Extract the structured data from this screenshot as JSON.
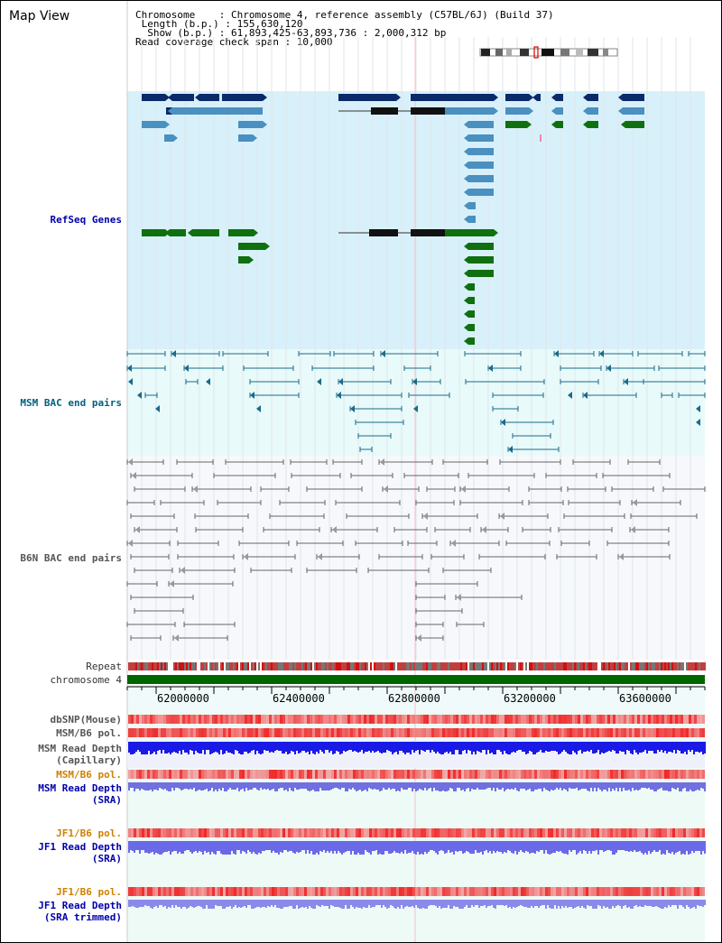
{
  "page": {
    "title": "Map View"
  },
  "info": {
    "chromosome_label": "Chromosome    : ",
    "chromosome_value": "Chromosome 4, reference assembly (C57BL/6J) (Build 37)",
    "length_label": " Length (b.p.) : ",
    "length_value": "155,630,120",
    "show_label": "  Show (b.p.) : ",
    "show_value": "61,893,425-63,893,736 : 2,000,312 bp",
    "coverage_label": "Read coverage check span : ",
    "coverage_value": "10,000"
  },
  "tracks": {
    "refseq": "RefSeq Genes",
    "msm_bac": "MSM BAC end pairs",
    "b6n_bac": "B6N BAC end pairs",
    "repeat": "Repeat",
    "chromosome": "chromosome 4",
    "dbsnp": "dbSNP(Mouse)",
    "msm_b6_pol_1": "MSM/B6 pol.",
    "msm_read_depth_cap_1": "MSM Read Depth",
    "msm_read_depth_cap_2": "(Capillary)",
    "msm_b6_pol_2": "MSM/B6 pol.",
    "msm_read_depth_sra_1": "MSM Read Depth",
    "msm_read_depth_sra_2": "(SRA)",
    "jf1_b6_pol_1": "JF1/B6 pol.",
    "jf1_read_depth_sra_1": "JF1 Read Depth",
    "jf1_read_depth_sra_2": "(SRA)",
    "jf1_b6_pol_2": "JF1/B6 pol.",
    "jf1_read_depth_trim_1": "JF1 Read Depth",
    "jf1_read_depth_trim_2": "(SRA trimmed)"
  },
  "axis": {
    "ticks": [
      "62000000",
      "62400000",
      "62800000",
      "63200000",
      "63600000"
    ]
  },
  "colors": {
    "refseq_bg": "#d8f0fa",
    "bac_bg": "#e8fafa",
    "gene_dark": "#0a2a6a",
    "gene_mid": "#4a90c0",
    "gene_green": "#107010",
    "chrom_green": "#006600"
  }
}
